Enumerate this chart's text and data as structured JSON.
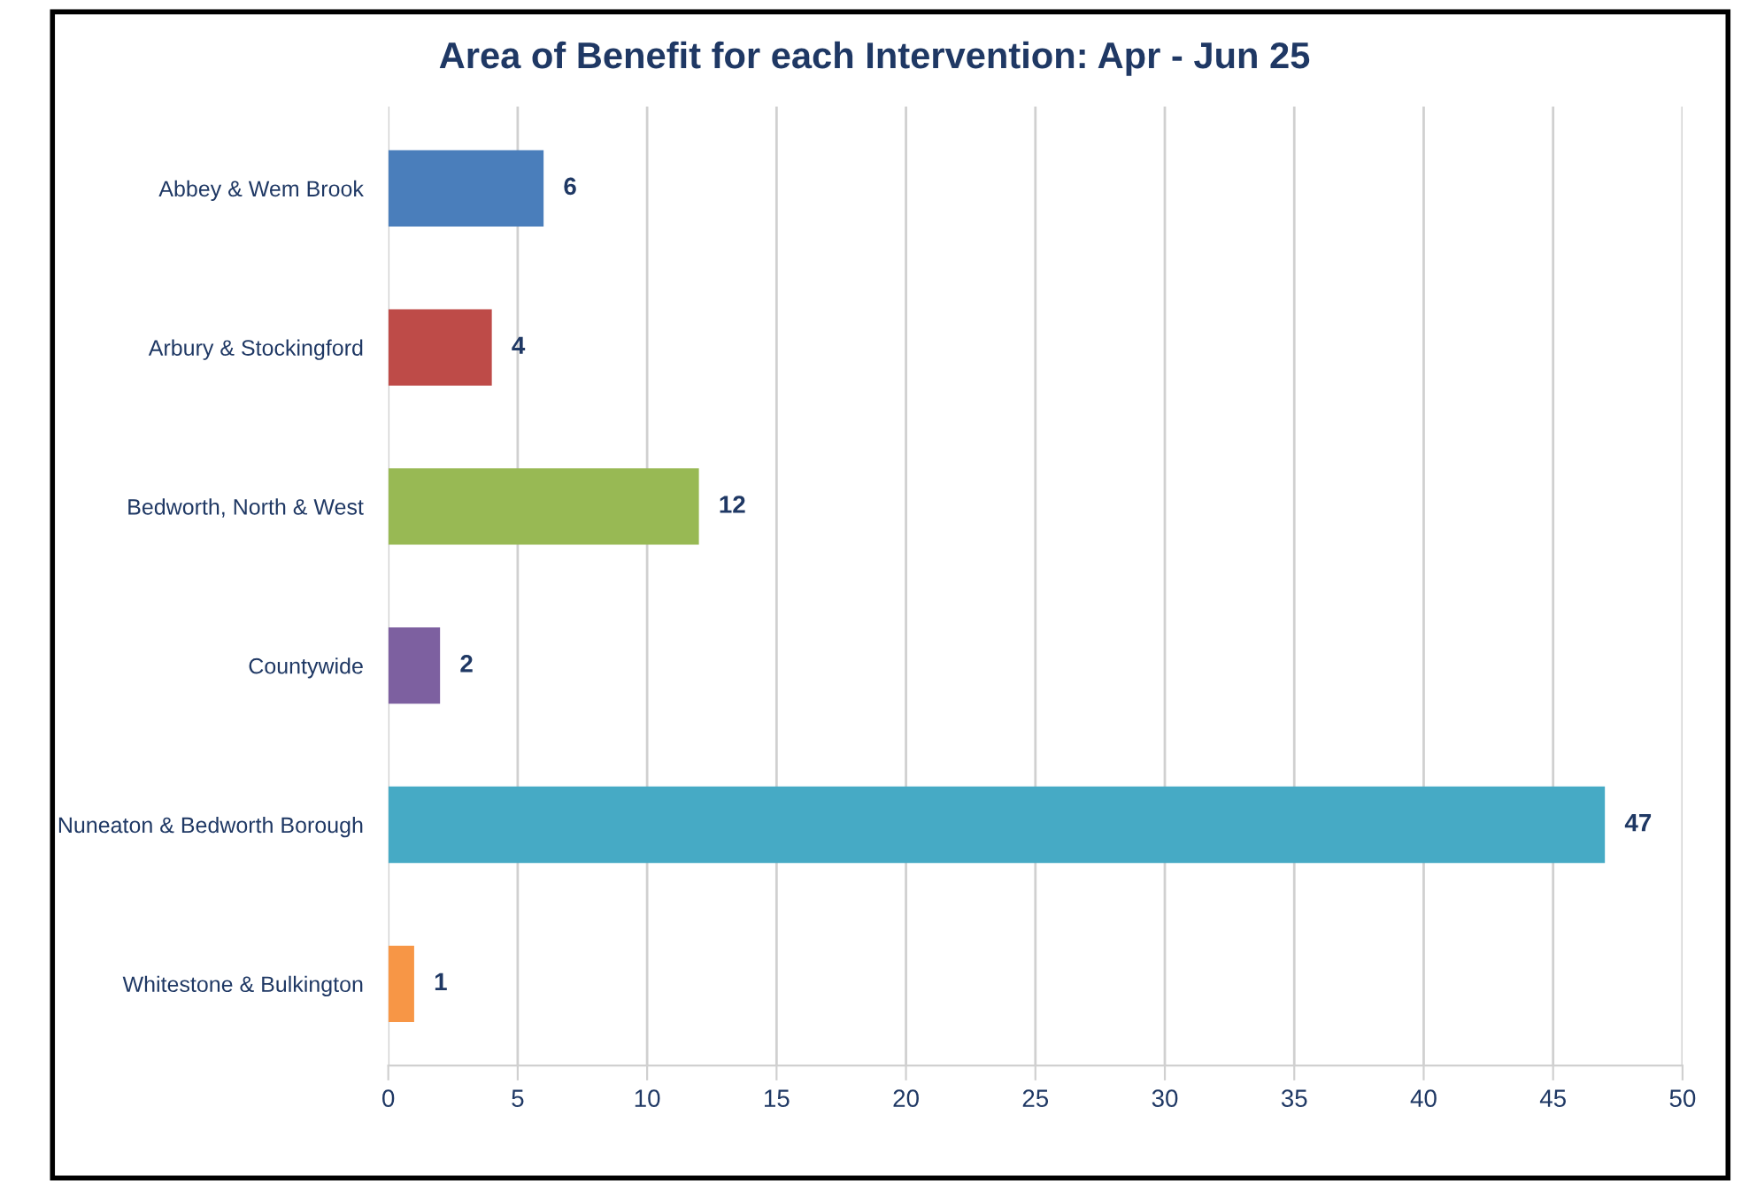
{
  "chart_data": {
    "type": "bar",
    "orientation": "horizontal",
    "title": "Area of Benefit for each Intervention: Apr - Jun 25",
    "categories": [
      "Abbey & Wem Brook",
      "Arbury & Stockingford",
      "Bedworth, North & West",
      "Countywide",
      "Nuneaton & Bedworth Borough",
      "Whitestone & Bulkington"
    ],
    "values": [
      6,
      4,
      12,
      2,
      47,
      1
    ],
    "colors": [
      "#4a7ebb",
      "#be4b48",
      "#98b954",
      "#7d60a0",
      "#46aac5",
      "#f79646"
    ],
    "data_labels": true,
    "xlim": [
      0,
      50
    ],
    "xticks": [
      0,
      5,
      10,
      15,
      20,
      25,
      30,
      35,
      40,
      45,
      50
    ],
    "grid": "x",
    "legend": false
  }
}
